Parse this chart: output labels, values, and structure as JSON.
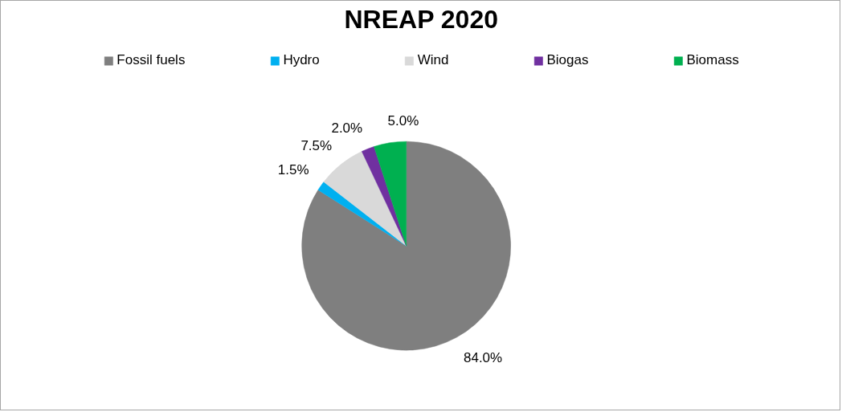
{
  "chart_data": {
    "type": "pie",
    "title": "NREAP 2020",
    "categories": [
      "Fossil fuels",
      "Hydro",
      "Wind",
      "Biogas",
      "Biomass"
    ],
    "values": [
      84.0,
      1.5,
      7.5,
      2.0,
      5.0
    ],
    "colors": [
      "#7f7f7f",
      "#00b0f0",
      "#d9d9d9",
      "#7030a0",
      "#00b050"
    ],
    "value_labels": [
      "84.0%",
      "1.5%",
      "7.5%",
      "2.0%",
      "5.0%"
    ],
    "legend": "top"
  }
}
